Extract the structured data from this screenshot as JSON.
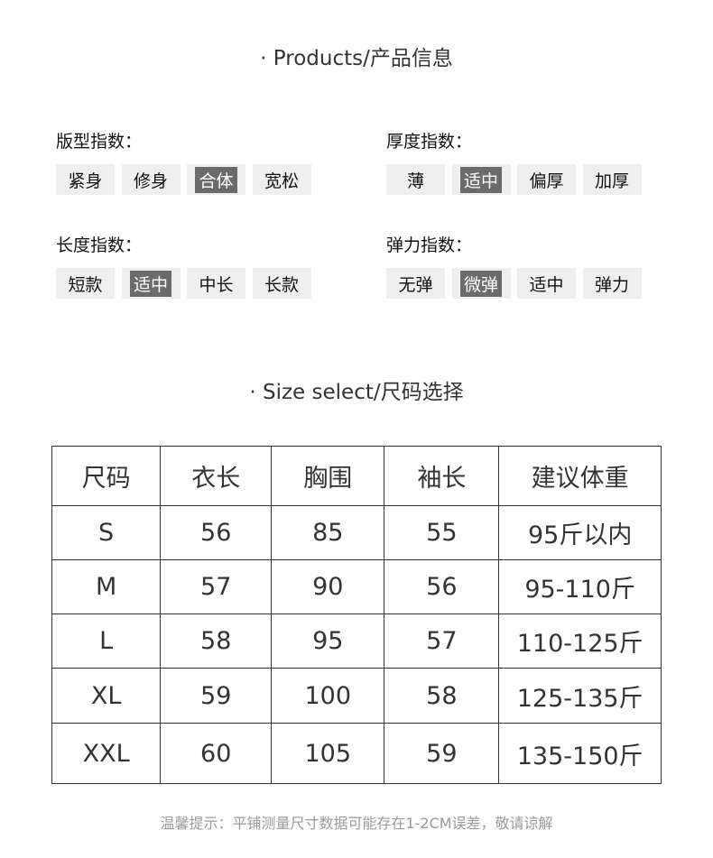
{
  "products_title": "· Products/产品信息",
  "groups": [
    {
      "label": "版型指数：",
      "options": [
        "紧身",
        "修身",
        "合体",
        "宽松"
      ],
      "selected": 2
    },
    {
      "label": "厚度指数：",
      "options": [
        "薄",
        "适中",
        "偏厚",
        "加厚"
      ],
      "selected": 1
    },
    {
      "label": "长度指数：",
      "options": [
        "短款",
        "适中",
        "中长",
        "长款"
      ],
      "selected": 1
    },
    {
      "label": "弹力指数：",
      "options": [
        "无弹",
        "微弹",
        "适中",
        "弹力"
      ],
      "selected": 1
    }
  ],
  "size_title": "· Size select/尺码选择",
  "table": {
    "headers": [
      "尺码",
      "衣长",
      "胸围",
      "袖长",
      "建议体重"
    ],
    "rows": [
      [
        "S",
        "56",
        "85",
        "55",
        "95斤以内"
      ],
      [
        "M",
        "57",
        "90",
        "56",
        "95-110斤"
      ],
      [
        "L",
        "58",
        "95",
        "57",
        "110-125斤"
      ],
      [
        "XL",
        "59",
        "100",
        "58",
        "125-135斤"
      ],
      [
        "XXL",
        "60",
        "105",
        "59",
        "135-150斤"
      ]
    ]
  },
  "note": "温馨提示：平铺测量尺寸数据可能存在1-2CM误差，敬请谅解"
}
